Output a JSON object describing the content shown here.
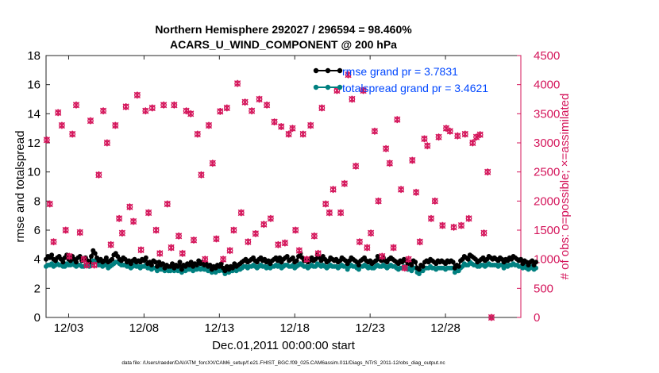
{
  "chart_data": {
    "type": "line",
    "title_lines": [
      "Northern Hemisphere 292027 / 296594 = 98.460%",
      "ACARS_U_WIND_COMPONENT @ 200 hPa"
    ],
    "xlabel": "Dec.01,2011 00:00:00 start",
    "ylabel_left": "rmse and totalspread",
    "ylabel_right": "# of obs: o=possible; ×=assimilated",
    "footnote": "data file: /Users/raeder/DAI/ATM_forcXX/CAM6_setup/f.e21.FHIST_BGC.f09_025.CAM6assim.011/Diags_NTrS_2011-12/obs_diag_output.nc",
    "x_range_days": [
      0.5,
      32.0
    ],
    "x_tick_days": [
      2,
      7,
      12,
      17,
      22,
      27
    ],
    "x_tick_labels": [
      "12/03",
      "12/08",
      "12/13",
      "12/18",
      "12/23",
      "12/28"
    ],
    "ylim_left": [
      0,
      18
    ],
    "yticks_left": [
      0,
      2,
      4,
      6,
      8,
      10,
      12,
      14,
      16,
      18
    ],
    "ylim_right": [
      0,
      4500
    ],
    "yticks_right": [
      0,
      500,
      1000,
      1500,
      2000,
      2500,
      3000,
      3500,
      4000,
      4500
    ],
    "legend": [
      "rmse grand pr = 3.7831",
      "totalspread grand pr = 3.4621"
    ],
    "colors": {
      "rmse": "#000000",
      "spread": "#008080",
      "obs": "#d4145a",
      "axis_right": "#d4145a",
      "legend_text": "#0047ff"
    },
    "series": [
      {
        "name": "rmse",
        "color": "#000000",
        "x_start": 0.5,
        "dx": 0.125,
        "values": [
          4.0,
          4.2,
          4.1,
          4.3,
          4.0,
          3.9,
          4.1,
          4.2,
          4.0,
          3.8,
          4.1,
          4.3,
          4.0,
          3.9,
          4.2,
          4.0,
          3.8,
          4.1,
          4.2,
          3.9,
          4.0,
          4.1,
          3.9,
          3.8,
          4.2,
          4.6,
          4.4,
          4.1,
          3.9,
          4.0,
          3.8,
          3.9,
          4.1,
          3.8,
          3.9,
          4.0,
          4.3,
          4.4,
          4.2,
          4.0,
          3.9,
          4.1,
          4.0,
          3.8,
          3.9,
          3.7,
          3.9,
          4.0,
          3.8,
          3.9,
          3.8,
          4.0,
          3.9,
          4.1,
          3.7,
          3.8,
          3.6,
          3.9,
          3.8,
          3.5,
          3.8,
          3.6,
          3.7,
          3.4,
          3.6,
          3.5,
          3.5,
          3.7,
          3.4,
          3.6,
          3.5,
          3.8,
          3.3,
          3.6,
          3.5,
          3.7,
          3.6,
          3.8,
          3.5,
          3.7,
          3.6,
          3.9,
          3.7,
          3.8,
          3.6,
          3.7,
          3.5,
          3.6,
          3.3,
          3.5,
          3.4,
          3.6,
          3.5,
          3.7,
          3.4,
          3.2,
          3.5,
          3.3,
          3.5,
          3.4,
          3.7,
          3.5,
          3.6,
          3.7,
          3.8,
          3.9,
          4.0,
          3.8,
          3.9,
          4.0,
          4.1,
          3.9,
          3.8,
          4.0,
          4.1,
          3.9,
          4.0,
          3.8,
          3.9,
          3.7,
          3.9,
          4.0,
          4.1,
          3.9,
          4.1,
          3.8,
          4.0,
          4.1,
          4.2,
          3.9,
          4.0,
          4.1,
          3.8,
          3.9,
          4.2,
          4.4,
          4.1,
          3.9,
          4.0,
          3.8,
          3.9,
          4.1,
          3.9,
          4.0,
          4.3,
          4.1,
          3.9,
          4.2,
          4.0,
          3.8,
          3.9,
          4.1,
          4.0,
          3.9,
          4.0,
          3.8,
          3.9,
          4.1,
          4.0,
          3.9,
          3.7,
          3.9,
          4.1,
          4.0,
          3.9,
          3.8,
          3.6,
          3.9,
          4.0,
          4.1,
          3.9,
          3.8,
          3.9,
          3.7,
          3.8,
          3.9,
          4.2,
          4.0,
          3.9,
          4.1,
          3.9,
          3.8,
          4.0,
          4.1,
          4.0,
          3.9,
          3.8,
          3.7,
          3.9,
          3.8,
          4.0,
          3.9,
          3.7,
          3.8,
          3.6,
          3.9,
          3.8,
          3.4,
          3.3,
          3.6,
          3.5,
          3.8,
          3.9,
          3.8,
          4.0,
          3.9,
          3.8,
          3.7,
          3.9,
          3.8,
          3.9,
          3.8,
          3.7,
          3.9,
          3.8,
          3.9,
          3.8,
          3.4,
          3.6,
          3.5,
          3.9,
          4.0,
          4.2,
          4.1,
          4.0,
          4.3,
          4.2,
          4.1,
          4.0,
          3.8,
          3.9,
          4.0,
          4.1,
          3.9,
          4.0,
          4.2,
          4.1,
          4.0,
          4.1,
          4.0,
          3.9,
          4.1,
          4.0,
          3.8,
          4.0,
          3.9,
          4.1,
          4.0,
          4.2,
          4.1,
          4.0,
          3.9,
          4.0,
          3.7,
          3.9,
          3.8,
          3.6,
          3.8,
          3.9,
          3.6,
          3.8
        ]
      },
      {
        "name": "totalspread",
        "color": "#008080",
        "x_start": 0.5,
        "dx": 0.125,
        "values": [
          3.5,
          3.6,
          3.6,
          3.7,
          3.5,
          3.6,
          3.7,
          3.6,
          3.6,
          3.5,
          3.5,
          3.7,
          3.6,
          3.6,
          3.8,
          3.6,
          3.5,
          3.6,
          3.6,
          3.5,
          3.5,
          3.6,
          3.6,
          3.5,
          3.7,
          3.9,
          3.9,
          3.8,
          3.6,
          3.6,
          3.5,
          3.6,
          3.6,
          3.4,
          3.5,
          3.6,
          3.7,
          3.8,
          3.8,
          3.7,
          3.6,
          3.6,
          3.6,
          3.5,
          3.5,
          3.4,
          3.5,
          3.6,
          3.5,
          3.5,
          3.4,
          3.5,
          3.5,
          3.6,
          3.4,
          3.4,
          3.3,
          3.4,
          3.4,
          3.2,
          3.4,
          3.3,
          3.3,
          3.2,
          3.3,
          3.2,
          3.2,
          3.3,
          3.2,
          3.3,
          3.2,
          3.3,
          3.1,
          3.3,
          3.2,
          3.3,
          3.3,
          3.4,
          3.2,
          3.3,
          3.3,
          3.4,
          3.3,
          3.4,
          3.3,
          3.3,
          3.2,
          3.3,
          3.1,
          3.2,
          3.1,
          3.3,
          3.2,
          3.3,
          3.2,
          3.0,
          3.2,
          3.1,
          3.2,
          3.2,
          3.3,
          3.2,
          3.3,
          3.3,
          3.4,
          3.5,
          3.5,
          3.4,
          3.5,
          3.5,
          3.6,
          3.5,
          3.4,
          3.5,
          3.6,
          3.5,
          3.5,
          3.4,
          3.5,
          3.4,
          3.5,
          3.5,
          3.6,
          3.5,
          3.6,
          3.4,
          3.5,
          3.6,
          3.6,
          3.5,
          3.5,
          3.6,
          3.4,
          3.5,
          3.6,
          3.7,
          3.6,
          3.5,
          3.5,
          3.4,
          3.5,
          3.6,
          3.5,
          3.5,
          3.7,
          3.6,
          3.5,
          3.6,
          3.5,
          3.4,
          3.5,
          3.6,
          3.5,
          3.5,
          3.5,
          3.4,
          3.5,
          3.6,
          3.5,
          3.5,
          3.3,
          3.5,
          3.6,
          3.5,
          3.5,
          3.4,
          3.3,
          3.5,
          3.5,
          3.6,
          3.5,
          3.4,
          3.5,
          3.4,
          3.4,
          3.5,
          3.6,
          3.5,
          3.5,
          3.6,
          3.5,
          3.4,
          3.5,
          3.6,
          3.5,
          3.5,
          3.4,
          3.3,
          3.4,
          3.4,
          3.5,
          3.4,
          3.3,
          3.4,
          3.2,
          3.4,
          3.4,
          3.1,
          3.0,
          3.2,
          3.2,
          3.4,
          3.4,
          3.4,
          3.5,
          3.4,
          3.4,
          3.3,
          3.4,
          3.4,
          3.4,
          3.4,
          3.3,
          3.4,
          3.4,
          3.4,
          3.4,
          3.1,
          3.2,
          3.2,
          3.4,
          3.5,
          3.7,
          3.6,
          3.6,
          3.8,
          3.7,
          3.6,
          3.6,
          3.5,
          3.5,
          3.6,
          3.6,
          3.5,
          3.6,
          3.7,
          3.6,
          3.6,
          3.6,
          3.6,
          3.5,
          3.6,
          3.6,
          3.4,
          3.6,
          3.5,
          3.6,
          3.6,
          3.7,
          3.6,
          3.6,
          3.5,
          3.5,
          3.4,
          3.5,
          3.4,
          3.3,
          3.4,
          3.5,
          3.3,
          3.4
        ]
      },
      {
        "name": "# of obs (possible o / assimilated x)",
        "color": "#d4145a",
        "axis": "right",
        "points": [
          [
            0.55,
            3050
          ],
          [
            0.75,
            1950
          ],
          [
            1.0,
            1300
          ],
          [
            1.3,
            3520
          ],
          [
            1.55,
            3300
          ],
          [
            1.8,
            1500
          ],
          [
            2.05,
            1050
          ],
          [
            2.25,
            3150
          ],
          [
            2.5,
            3650
          ],
          [
            2.75,
            1460
          ],
          [
            3.0,
            1000
          ],
          [
            3.2,
            900
          ],
          [
            3.45,
            3380
          ],
          [
            3.7,
            900
          ],
          [
            4.0,
            2450
          ],
          [
            4.3,
            3550
          ],
          [
            4.55,
            3000
          ],
          [
            4.8,
            1250
          ],
          [
            5.1,
            3300
          ],
          [
            5.35,
            1700
          ],
          [
            5.55,
            1450
          ],
          [
            5.8,
            3620
          ],
          [
            6.05,
            1900
          ],
          [
            6.3,
            1650
          ],
          [
            6.55,
            3820
          ],
          [
            6.8,
            1160
          ],
          [
            7.1,
            3550
          ],
          [
            7.3,
            1800
          ],
          [
            7.55,
            3600
          ],
          [
            7.8,
            1500
          ],
          [
            8.05,
            1100
          ],
          [
            8.3,
            3650
          ],
          [
            8.55,
            1950
          ],
          [
            8.8,
            1200
          ],
          [
            9.0,
            3650
          ],
          [
            9.3,
            1400
          ],
          [
            9.55,
            1100
          ],
          [
            9.8,
            3550
          ],
          [
            10.1,
            3500
          ],
          [
            10.3,
            1330
          ],
          [
            10.55,
            3150
          ],
          [
            10.8,
            2450
          ],
          [
            11.05,
            1000
          ],
          [
            11.3,
            3300
          ],
          [
            11.55,
            2650
          ],
          [
            11.8,
            1350
          ],
          [
            12.05,
            3540
          ],
          [
            12.25,
            1000
          ],
          [
            12.5,
            3600
          ],
          [
            12.7,
            1150
          ],
          [
            12.95,
            1500
          ],
          [
            13.2,
            4020
          ],
          [
            13.45,
            1800
          ],
          [
            13.7,
            3700
          ],
          [
            13.9,
            1300
          ],
          [
            14.15,
            3550
          ],
          [
            14.4,
            1440
          ],
          [
            14.65,
            3750
          ],
          [
            14.95,
            1600
          ],
          [
            15.15,
            3650
          ],
          [
            15.4,
            1700
          ],
          [
            15.65,
            3360
          ],
          [
            15.9,
            1250
          ],
          [
            16.1,
            3280
          ],
          [
            16.35,
            1280
          ],
          [
            16.6,
            3150
          ],
          [
            16.85,
            3250
          ],
          [
            17.05,
            1500
          ],
          [
            17.3,
            1150
          ],
          [
            17.55,
            3150
          ],
          [
            17.8,
            1000
          ],
          [
            18.05,
            3300
          ],
          [
            18.3,
            1400
          ],
          [
            18.55,
            1100
          ],
          [
            18.8,
            3600
          ],
          [
            19.05,
            1950
          ],
          [
            19.3,
            1800
          ],
          [
            19.55,
            2200
          ],
          [
            19.8,
            3900
          ],
          [
            20.05,
            1800
          ],
          [
            20.3,
            2300
          ],
          [
            20.55,
            4170
          ],
          [
            20.8,
            3750
          ],
          [
            21.05,
            2600
          ],
          [
            21.3,
            1300
          ],
          [
            21.55,
            3900
          ],
          [
            21.8,
            1200
          ],
          [
            22.05,
            1450
          ],
          [
            22.3,
            3200
          ],
          [
            22.55,
            2000
          ],
          [
            22.8,
            1050
          ],
          [
            23.05,
            2900
          ],
          [
            23.3,
            2650
          ],
          [
            23.55,
            1200
          ],
          [
            23.8,
            3400
          ],
          [
            24.05,
            2200
          ],
          [
            24.3,
            850
          ],
          [
            24.55,
            1000
          ],
          [
            24.8,
            2700
          ],
          [
            25.05,
            2150
          ],
          [
            25.3,
            1300
          ],
          [
            25.6,
            3070
          ],
          [
            25.8,
            2950
          ],
          [
            26.05,
            1700
          ],
          [
            26.3,
            2000
          ],
          [
            26.55,
            3100
          ],
          [
            26.8,
            1580
          ],
          [
            27.05,
            3250
          ],
          [
            27.3,
            3200
          ],
          [
            27.55,
            1550
          ],
          [
            27.8,
            3120
          ],
          [
            28.05,
            1580
          ],
          [
            28.3,
            3150
          ],
          [
            28.55,
            1700
          ],
          [
            28.8,
            3000
          ],
          [
            29.05,
            3100
          ],
          [
            29.3,
            3140
          ],
          [
            29.55,
            1450
          ],
          [
            29.8,
            2500
          ],
          [
            30.05,
            0
          ]
        ]
      }
    ]
  }
}
